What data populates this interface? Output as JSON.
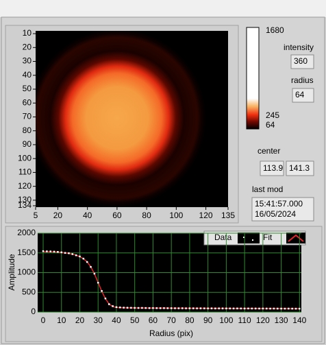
{
  "image": {
    "xlim": [
      5,
      135
    ],
    "ylim": [
      8,
      135
    ],
    "xticks": [
      5,
      20,
      40,
      60,
      80,
      100,
      120,
      135
    ],
    "yticks": [
      10,
      20,
      30,
      40,
      50,
      60,
      70,
      80,
      90,
      100,
      110,
      120,
      130,
      134
    ]
  },
  "colorbar": {
    "ticks": [
      1680,
      245,
      64
    ]
  },
  "intensity": {
    "label": "intensity",
    "value": 360
  },
  "radius": {
    "label": "radius",
    "value": 64
  },
  "center": {
    "label": "center",
    "values": [
      113.9,
      141.3
    ]
  },
  "last_mod": {
    "label": "last mod",
    "lines": [
      "15:41:57.000",
      "16/05/2024"
    ]
  },
  "chart_data": {
    "type": "line",
    "xlabel": "Radius (pix)",
    "ylabel": "Amplitude",
    "xlim": [
      -3,
      141
    ],
    "ylim": [
      0,
      2000
    ],
    "xticks": [
      0,
      10,
      20,
      30,
      40,
      50,
      60,
      70,
      80,
      90,
      100,
      110,
      120,
      130,
      140
    ],
    "yticks": [
      0,
      500,
      1000,
      1500,
      2000
    ],
    "grid": true,
    "x": [
      0,
      2,
      4,
      6,
      8,
      10,
      12,
      14,
      16,
      18,
      20,
      22,
      24,
      26,
      28,
      30,
      32,
      34,
      36,
      38,
      40,
      42,
      44,
      46,
      48,
      50,
      52,
      54,
      56,
      58,
      60,
      62,
      64,
      66,
      68,
      70,
      72,
      74,
      76,
      78,
      80,
      82,
      84,
      86,
      88,
      90,
      92,
      94,
      96,
      98,
      100,
      102,
      104,
      106,
      108,
      110,
      112,
      114,
      116,
      118,
      120,
      122,
      124,
      126,
      128,
      130,
      132,
      134,
      136,
      138,
      140
    ],
    "series": [
      {
        "name": "Data",
        "color": "#ffffff",
        "mode": "markers",
        "values": [
          1545,
          1540,
          1538,
          1532,
          1526,
          1515,
          1500,
          1492,
          1470,
          1440,
          1410,
          1355,
          1270,
          1145,
          975,
          745,
          535,
          345,
          200,
          150,
          125,
          118,
          112,
          110,
          108,
          106,
          104,
          105,
          103,
          101,
          102,
          100,
          99,
          100,
          98,
          98,
          97,
          96,
          97,
          95,
          96,
          95,
          94,
          95,
          94,
          93,
          94,
          92,
          93,
          93,
          92,
          92,
          91,
          92,
          91,
          90,
          91,
          90,
          90,
          89,
          90,
          89,
          88,
          89,
          88,
          88,
          87,
          88,
          87,
          86,
          86
        ]
      },
      {
        "name": "Fit",
        "color": "#e8232a",
        "mode": "line",
        "values": [
          1530,
          1530,
          1528,
          1525,
          1520,
          1512,
          1502,
          1488,
          1468,
          1442,
          1405,
          1352,
          1275,
          1150,
          970,
          750,
          530,
          340,
          205,
          140,
          118,
          112,
          110,
          108,
          107,
          106,
          105,
          104,
          103,
          102,
          101,
          100,
          100,
          99,
          99,
          98,
          98,
          97,
          97,
          96,
          96,
          96,
          95,
          95,
          95,
          94,
          94,
          94,
          93,
          93,
          93,
          92,
          92,
          92,
          92,
          91,
          91,
          91,
          91,
          90,
          90,
          90,
          90,
          89,
          89,
          89,
          89,
          88,
          88,
          88,
          88
        ]
      }
    ]
  }
}
